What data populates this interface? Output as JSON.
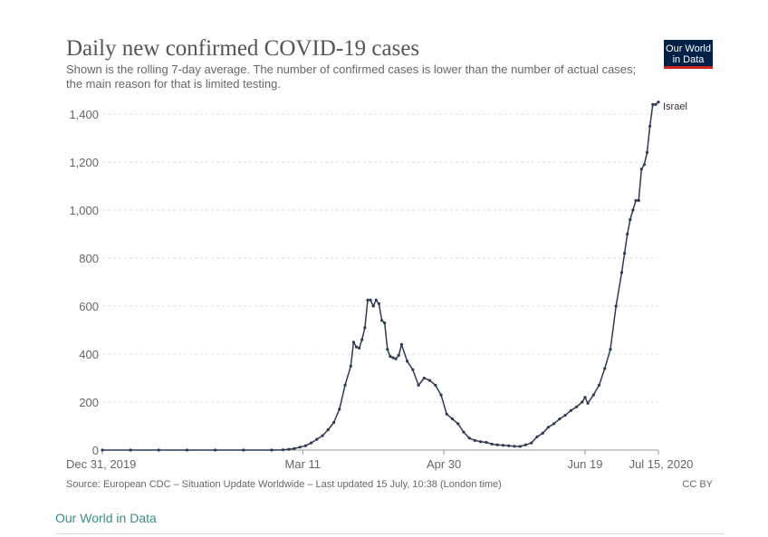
{
  "header": {
    "title": "Daily new confirmed COVID-19 cases",
    "subtitle": "Shown is the rolling 7-day average. The number of confirmed cases is lower than the number of actual cases; the main reason for that is limited testing.",
    "logo_line1": "Our World",
    "logo_line2": "in Data"
  },
  "footer": {
    "source": "Source: European CDC – Situation Update Worldwide – Last updated 15 July, 10:38 (London time)",
    "license": "CC BY",
    "site_link": "Our World in Data"
  },
  "colors": {
    "series": "#2e3a52",
    "grid": "#dddddd",
    "logo_bg": "#002147",
    "logo_accent": "#ce261e",
    "link": "#3b8e88"
  },
  "chart_data": {
    "type": "line",
    "title": "Daily new confirmed COVID-19 cases",
    "ylim": [
      0,
      1400
    ],
    "y_ticks": [
      0,
      200,
      400,
      600,
      800,
      1000,
      1200,
      1400
    ],
    "y_tick_labels": [
      "0",
      "200",
      "400",
      "600",
      "800",
      "1,000",
      "1,200",
      "1,400"
    ],
    "x_ticks": [
      {
        "day": 0,
        "label": "Dec 31, 2019"
      },
      {
        "day": 71,
        "label": "Mar 11"
      },
      {
        "day": 121,
        "label": "Apr 30"
      },
      {
        "day": 171,
        "label": "Jun 19"
      },
      {
        "day": 197,
        "label": "Jul 15, 2020"
      }
    ],
    "x_domain_days": [
      0,
      197
    ],
    "grid": "horizontal dashed",
    "series": [
      {
        "name": "Israel",
        "x_days": [
          0,
          10,
          20,
          30,
          40,
          50,
          60,
          64,
          66,
          68,
          70,
          72,
          74,
          76,
          78,
          80,
          82,
          84,
          86,
          88,
          89,
          90,
          91,
          92,
          93,
          94,
          95,
          96,
          97,
          98,
          99,
          100,
          101,
          102,
          103,
          104,
          105,
          106,
          108,
          110,
          112,
          114,
          116,
          118,
          120,
          122,
          124,
          126,
          128,
          130,
          132,
          134,
          136,
          138,
          140,
          142,
          144,
          146,
          148,
          150,
          152,
          154,
          156,
          158,
          160,
          162,
          164,
          166,
          168,
          170,
          171,
          172,
          174,
          176,
          178,
          180,
          182,
          184,
          185,
          186,
          187,
          188,
          189,
          190,
          191,
          192,
          193,
          194,
          195,
          196,
          197
        ],
        "values": [
          0,
          0,
          0,
          0,
          0,
          0,
          0,
          1,
          3,
          6,
          12,
          18,
          30,
          45,
          60,
          85,
          115,
          170,
          270,
          350,
          450,
          430,
          425,
          460,
          510,
          625,
          625,
          600,
          625,
          610,
          540,
          530,
          420,
          390,
          385,
          380,
          395,
          440,
          370,
          335,
          270,
          300,
          290,
          270,
          230,
          150,
          130,
          110,
          75,
          50,
          40,
          35,
          32,
          25,
          22,
          20,
          18,
          16,
          15,
          22,
          30,
          55,
          70,
          95,
          110,
          130,
          145,
          165,
          180,
          200,
          220,
          195,
          230,
          270,
          340,
          420,
          600,
          740,
          820,
          900,
          960,
          1000,
          1040,
          1040,
          1170,
          1190,
          1240,
          1350,
          1440,
          1440,
          1450
        ]
      }
    ]
  }
}
